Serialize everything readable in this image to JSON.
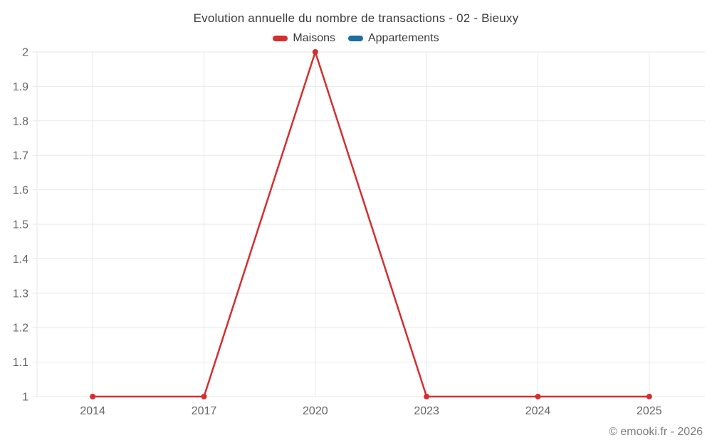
{
  "chart_data": {
    "type": "line",
    "title": "Evolution annuelle du nombre de transactions - 02 - Bieuxy",
    "categories": [
      "2014",
      "2017",
      "2020",
      "2023",
      "2024",
      "2025"
    ],
    "series": [
      {
        "name": "Maisons",
        "color": "#d32f2f",
        "values": [
          1,
          1,
          2,
          1,
          1,
          1
        ]
      },
      {
        "name": "Appartements",
        "color": "#1c6ea4",
        "values": []
      }
    ],
    "ylim": [
      1,
      2
    ],
    "ytick_labels": [
      "1",
      "1.1",
      "1.2",
      "1.3",
      "1.4",
      "1.5",
      "1.6",
      "1.7",
      "1.8",
      "1.9",
      "2"
    ],
    "grid": true,
    "legend_position": "top-center",
    "styles": {
      "grid_color": "#e7e7e7",
      "axis_label_color": "#666666",
      "title_color": "#3b3b3b",
      "background": "#ffffff",
      "line_width": 2.5,
      "marker_radius": 4
    }
  },
  "footer": {
    "credit": "© emooki.fr - 2026"
  }
}
